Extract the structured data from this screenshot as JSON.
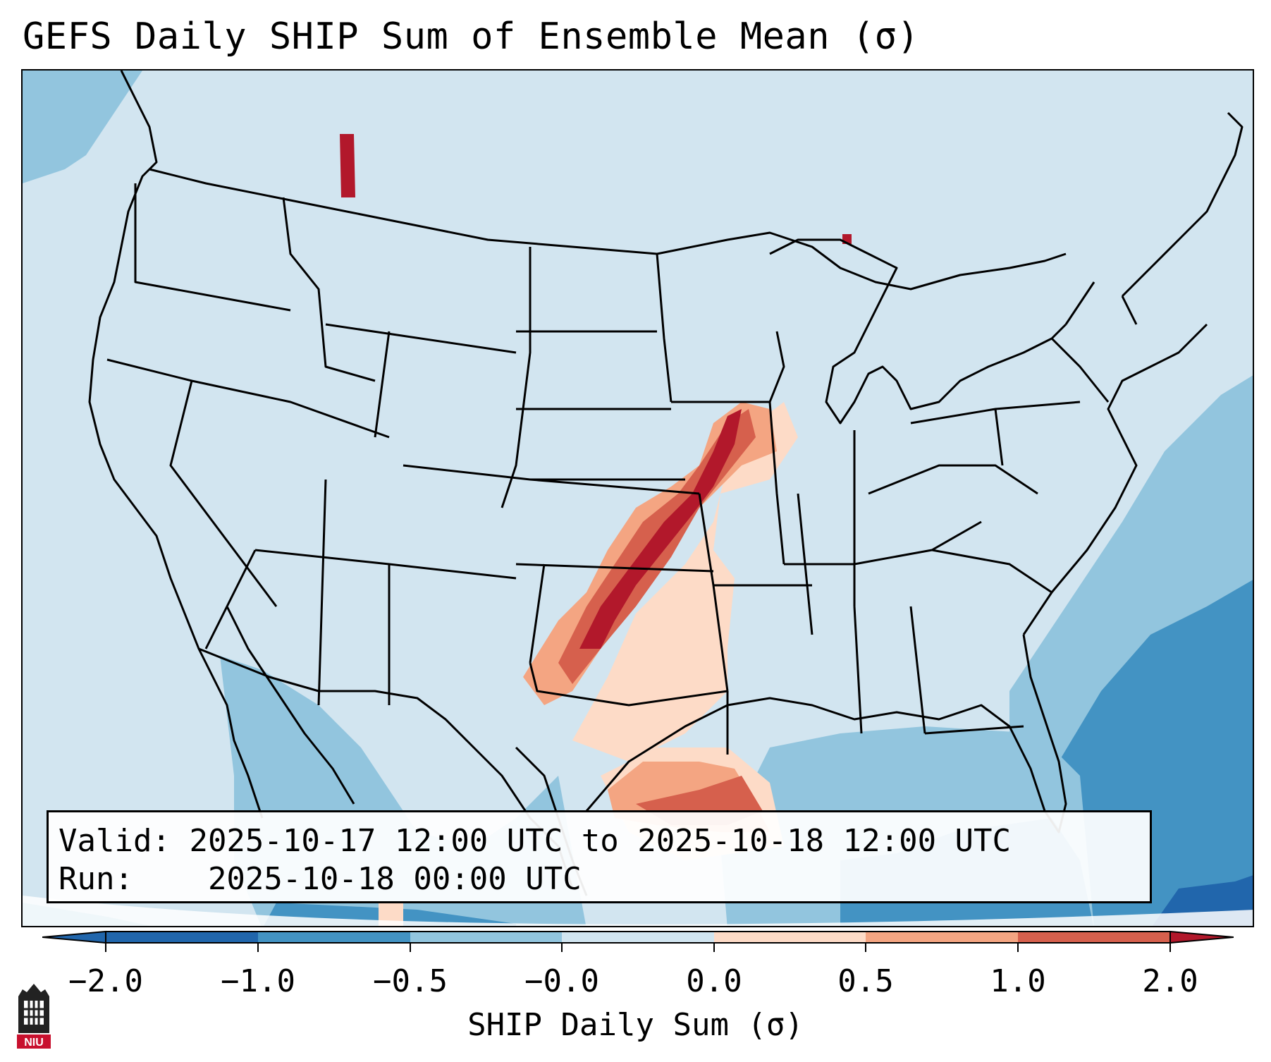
{
  "title": "GEFS Daily SHIP Sum of Ensemble Mean (σ)",
  "info": {
    "valid_label": "Valid:",
    "valid_value": "2025-10-17 12:00 UTC to 2025-10-18 12:00 UTC",
    "run_label": "Run:",
    "run_value": "2025-10-18 00:00 UTC"
  },
  "colorbar": {
    "label": "SHIP Daily Sum (σ)",
    "ticks": [
      "−2.0",
      "−1.0",
      "−0.5",
      "−0.0",
      "0.0",
      "0.5",
      "1.0",
      "2.0"
    ],
    "colors": [
      "#2166ac",
      "#4393c3",
      "#92c5de",
      "#d1e5f0",
      "#fddbc7",
      "#f4a582",
      "#d6604d",
      "#b2182b"
    ],
    "extend": "both"
  },
  "logo": {
    "text": "NIU",
    "color": "#c8102e"
  }
}
